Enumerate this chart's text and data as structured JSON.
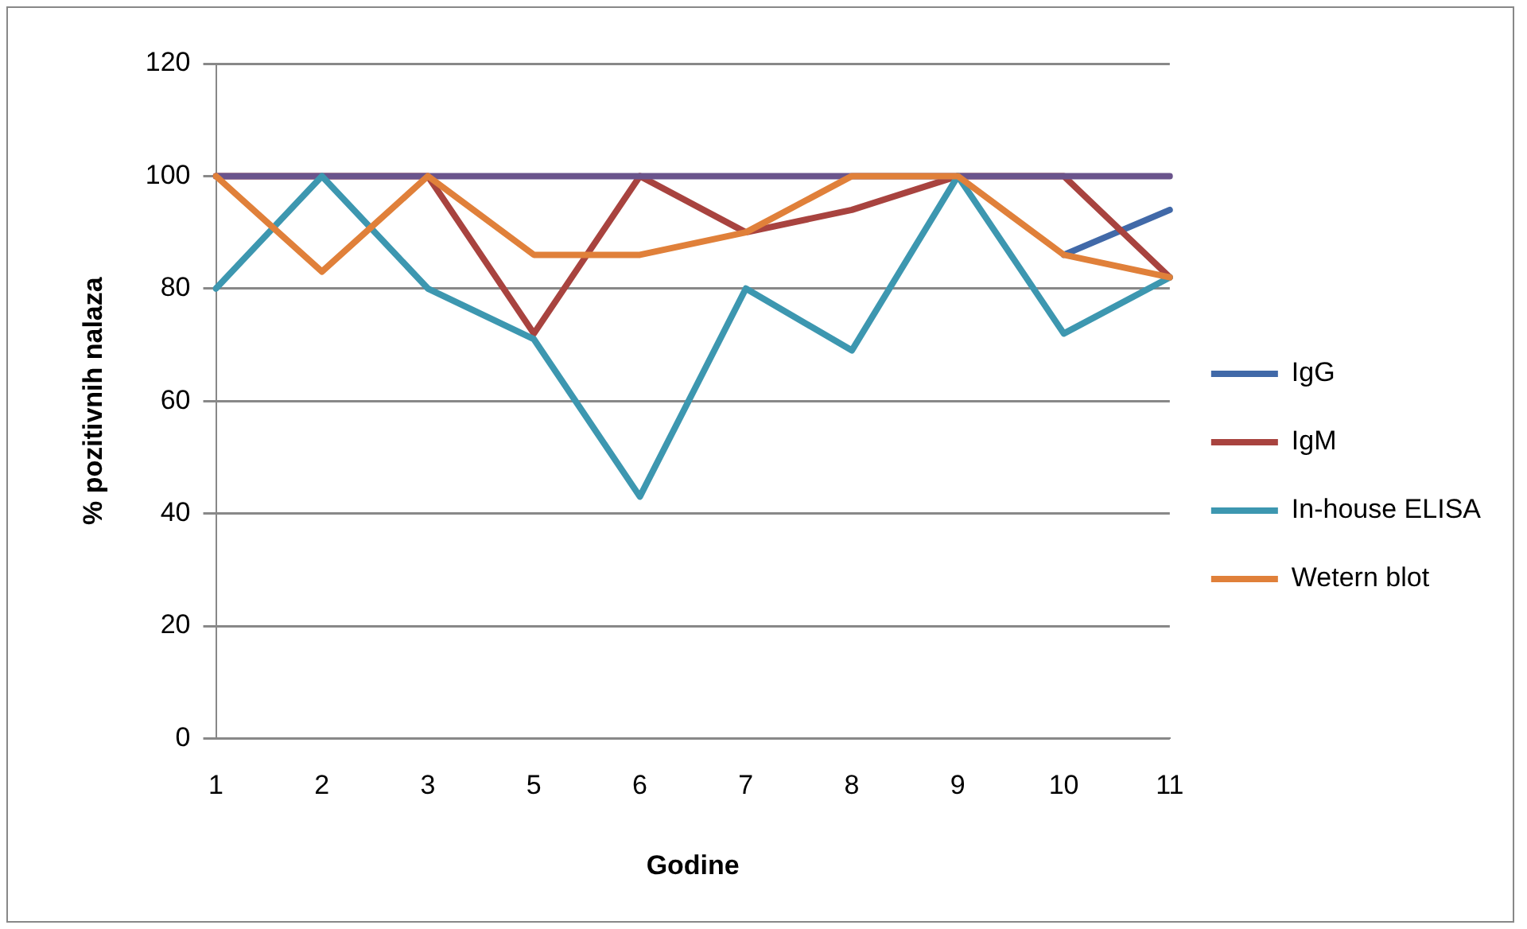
{
  "chart_data": {
    "type": "line",
    "xlabel": "Godine",
    "ylabel": "% pozitivnih nalaza",
    "categories": [
      "1",
      "2",
      "3",
      "5",
      "6",
      "7",
      "8",
      "9",
      "10",
      "11"
    ],
    "ylim": [
      0,
      120
    ],
    "yticks": [
      0,
      20,
      40,
      60,
      80,
      100,
      120
    ],
    "grid": "y",
    "legend": "right",
    "marker": "none",
    "line_style": "solid",
    "series": [
      {
        "name": "IgG",
        "color": "#4169a8",
        "values": [
          null,
          null,
          null,
          null,
          null,
          null,
          null,
          null,
          86,
          94
        ]
      },
      {
        "name": "IgM",
        "color": "#a8433f",
        "values": [
          100,
          100,
          100,
          72,
          100,
          90,
          94,
          100,
          100,
          82
        ]
      },
      {
        "color": "#98b954",
        "values": [
          null,
          null,
          null,
          null,
          null,
          null,
          null,
          null,
          null,
          null
        ]
      },
      {
        "color": "#6a548c",
        "values": [
          100,
          100,
          100,
          100,
          100,
          100,
          100,
          100,
          100,
          100
        ]
      },
      {
        "name": "In-house ELISA",
        "color": "#3d97b0",
        "values": [
          80,
          100,
          80,
          71,
          43,
          80,
          69,
          100,
          72,
          82
        ]
      },
      {
        "name": "Wetern blot",
        "color": "#e0803a",
        "values": [
          100,
          83,
          100,
          86,
          86,
          90,
          100,
          100,
          86,
          82
        ]
      }
    ]
  }
}
